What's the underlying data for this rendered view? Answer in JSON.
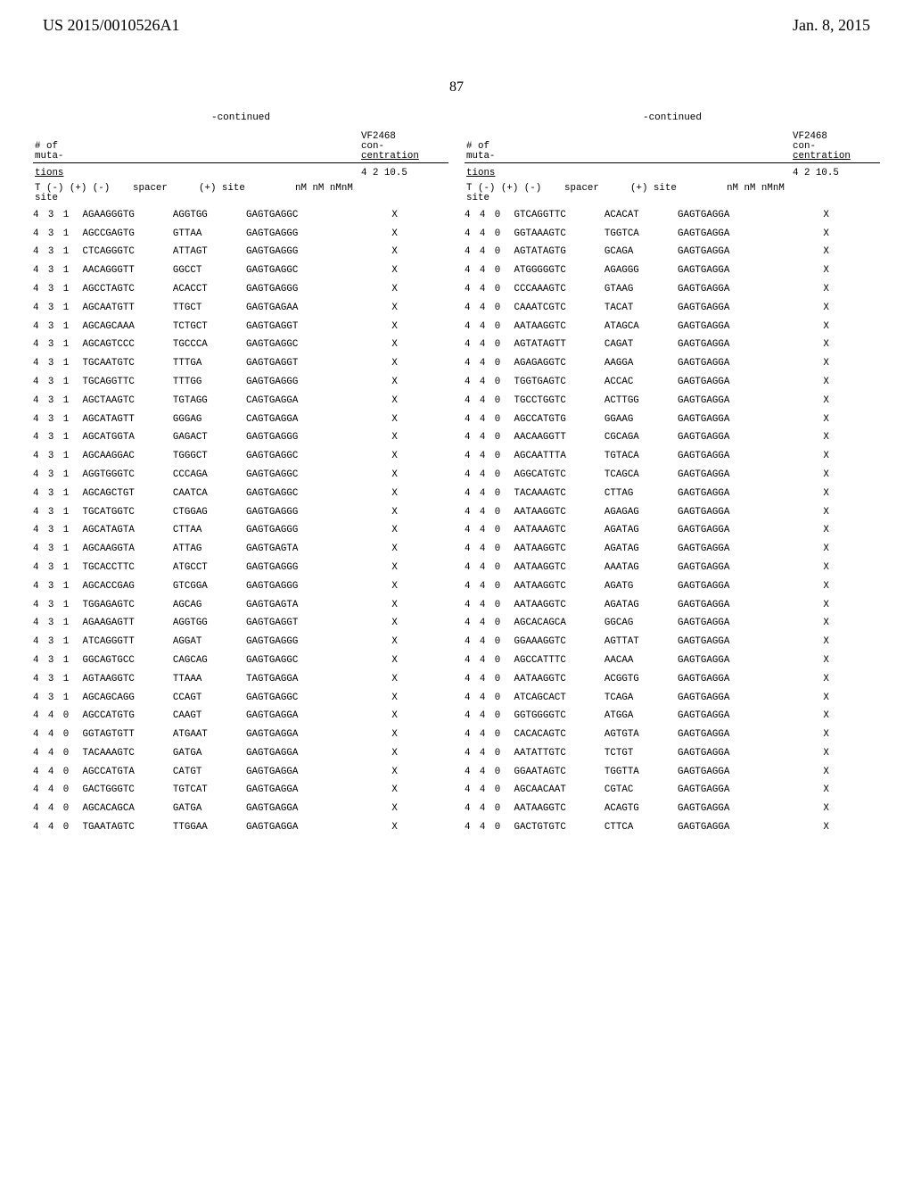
{
  "header": {
    "left": "US 2015/0010526A1",
    "right": "Jan. 8, 2015"
  },
  "page_number": "87",
  "continued_label": "-continued",
  "column_headers": {
    "muta_line1": "# of",
    "muta_line2": "muta-",
    "vf_line1": "VF2468",
    "vf_line2": "con-",
    "vf_line3": "centration",
    "tions": "tions",
    "nums": "4   2   10.5",
    "t_label": "T (-) (+) (-) site",
    "spacer": "spacer",
    "plus_site": "(+) site",
    "nm": "nM  nM  nMnM"
  },
  "left_rows": [
    {
      "a": "4",
      "b": "3",
      "c": "1",
      "site": "AGAAGGGTG",
      "spacer": "AGGTGG",
      "plus": "GAGTGAGGC",
      "m": [
        "",
        "X",
        ""
      ]
    },
    {
      "a": "4",
      "b": "3",
      "c": "1",
      "site": "AGCCGAGTG",
      "spacer": "GTTAA",
      "plus": "GAGTGAGGG",
      "m": [
        "",
        "X",
        ""
      ]
    },
    {
      "a": "4",
      "b": "3",
      "c": "1",
      "site": "CTCAGGGTC",
      "spacer": "ATTAGT",
      "plus": "GAGTGAGGG",
      "m": [
        "",
        "X",
        ""
      ]
    },
    {
      "a": "4",
      "b": "3",
      "c": "1",
      "site": "AACAGGGTT",
      "spacer": "GGCCT",
      "plus": "GAGTGAGGC",
      "m": [
        "",
        "X",
        ""
      ]
    },
    {
      "a": "4",
      "b": "3",
      "c": "1",
      "site": "AGCCTAGTC",
      "spacer": "ACACCT",
      "plus": "GAGTGAGGG",
      "m": [
        "",
        "X",
        ""
      ]
    },
    {
      "a": "4",
      "b": "3",
      "c": "1",
      "site": "AGCAATGTT",
      "spacer": "TTGCT",
      "plus": "GAGTGAGAA",
      "m": [
        "",
        "X",
        ""
      ]
    },
    {
      "a": "4",
      "b": "3",
      "c": "1",
      "site": "AGCAGCAAA",
      "spacer": "TCTGCT",
      "plus": "GAGTGAGGT",
      "m": [
        "",
        "X",
        ""
      ]
    },
    {
      "a": "4",
      "b": "3",
      "c": "1",
      "site": "AGCAGTCCC",
      "spacer": "TGCCCA",
      "plus": "GAGTGAGGC",
      "m": [
        "",
        "X",
        ""
      ]
    },
    {
      "a": "4",
      "b": "3",
      "c": "1",
      "site": "TGCAATGTC",
      "spacer": "TTTGA",
      "plus": "GAGTGAGGT",
      "m": [
        "",
        "X",
        ""
      ]
    },
    {
      "a": "4",
      "b": "3",
      "c": "1",
      "site": "TGCAGGTTC",
      "spacer": "TTTGG",
      "plus": "GAGTGAGGG",
      "m": [
        "",
        "X",
        ""
      ]
    },
    {
      "a": "4",
      "b": "3",
      "c": "1",
      "site": "AGCTAAGTC",
      "spacer": "TGTAGG",
      "plus": "CAGTGAGGA",
      "m": [
        "",
        "X",
        ""
      ]
    },
    {
      "a": "4",
      "b": "3",
      "c": "1",
      "site": "AGCATAGTT",
      "spacer": "GGGAG",
      "plus": "CAGTGAGGA",
      "m": [
        "",
        "X",
        ""
      ]
    },
    {
      "a": "4",
      "b": "3",
      "c": "1",
      "site": "AGCATGGTA",
      "spacer": "GAGACT",
      "plus": "GAGTGAGGG",
      "m": [
        "",
        "X",
        ""
      ]
    },
    {
      "a": "4",
      "b": "3",
      "c": "1",
      "site": "AGCAAGGAC",
      "spacer": "TGGGCT",
      "plus": "GAGTGAGGC",
      "m": [
        "",
        "X",
        ""
      ]
    },
    {
      "a": "4",
      "b": "3",
      "c": "1",
      "site": "AGGTGGGTC",
      "spacer": "CCCAGA",
      "plus": "GAGTGAGGC",
      "m": [
        "",
        "X",
        ""
      ]
    },
    {
      "a": "4",
      "b": "3",
      "c": "1",
      "site": "AGCAGCTGT",
      "spacer": "CAATCA",
      "plus": "GAGTGAGGC",
      "m": [
        "",
        "X",
        ""
      ]
    },
    {
      "a": "4",
      "b": "3",
      "c": "1",
      "site": "TGCATGGTC",
      "spacer": "CTGGAG",
      "plus": "GAGTGAGGG",
      "m": [
        "",
        "X",
        ""
      ]
    },
    {
      "a": "4",
      "b": "3",
      "c": "1",
      "site": "AGCATAGTA",
      "spacer": "CTTAA",
      "plus": "GAGTGAGGG",
      "m": [
        "",
        "X",
        ""
      ]
    },
    {
      "a": "4",
      "b": "3",
      "c": "1",
      "site": "AGCAAGGTA",
      "spacer": "ATTAG",
      "plus": "GAGTGAGTA",
      "m": [
        "",
        "X",
        ""
      ]
    },
    {
      "a": "4",
      "b": "3",
      "c": "1",
      "site": "TGCACCTTC",
      "spacer": "ATGCCT",
      "plus": "GAGTGAGGG",
      "m": [
        "",
        "X",
        ""
      ]
    },
    {
      "a": "4",
      "b": "3",
      "c": "1",
      "site": "AGCACCGAG",
      "spacer": "GTCGGA",
      "plus": "GAGTGAGGG",
      "m": [
        "",
        "X",
        ""
      ]
    },
    {
      "a": "4",
      "b": "3",
      "c": "1",
      "site": "TGGAGAGTC",
      "spacer": "AGCAG",
      "plus": "GAGTGAGTA",
      "m": [
        "",
        "X",
        ""
      ]
    },
    {
      "a": "4",
      "b": "3",
      "c": "1",
      "site": "AGAAGAGTT",
      "spacer": "AGGTGG",
      "plus": "GAGTGAGGT",
      "m": [
        "",
        "X",
        ""
      ]
    },
    {
      "a": "4",
      "b": "3",
      "c": "1",
      "site": "ATCAGGGTT",
      "spacer": "AGGAT",
      "plus": "GAGTGAGGG",
      "m": [
        "",
        "X",
        ""
      ]
    },
    {
      "a": "4",
      "b": "3",
      "c": "1",
      "site": "GGCAGTGCC",
      "spacer": "CAGCAG",
      "plus": "GAGTGAGGC",
      "m": [
        "",
        "X",
        ""
      ]
    },
    {
      "a": "4",
      "b": "3",
      "c": "1",
      "site": "AGTAAGGTC",
      "spacer": "TTAAA",
      "plus": "TAGTGAGGA",
      "m": [
        "",
        "X",
        ""
      ]
    },
    {
      "a": "4",
      "b": "3",
      "c": "1",
      "site": "AGCAGCAGG",
      "spacer": "CCAGT",
      "plus": "GAGTGAGGC",
      "m": [
        "",
        "X",
        ""
      ]
    },
    {
      "a": "4",
      "b": "4",
      "c": "0",
      "site": "AGCCATGTG",
      "spacer": "CAAGT",
      "plus": "GAGTGAGGA",
      "m": [
        "",
        "X",
        ""
      ]
    },
    {
      "a": "4",
      "b": "4",
      "c": "0",
      "site": "GGTAGTGTT",
      "spacer": "ATGAAT",
      "plus": "GAGTGAGGA",
      "m": [
        "",
        "X",
        ""
      ]
    },
    {
      "a": "4",
      "b": "4",
      "c": "0",
      "site": "TACAAAGTC",
      "spacer": "GATGA",
      "plus": "GAGTGAGGA",
      "m": [
        "",
        "X",
        ""
      ]
    },
    {
      "a": "4",
      "b": "4",
      "c": "0",
      "site": "AGCCATGTA",
      "spacer": "CATGT",
      "plus": "GAGTGAGGA",
      "m": [
        "",
        "X",
        ""
      ]
    },
    {
      "a": "4",
      "b": "4",
      "c": "0",
      "site": "GACTGGGTC",
      "spacer": "TGTCAT",
      "plus": "GAGTGAGGA",
      "m": [
        "",
        "X",
        ""
      ]
    },
    {
      "a": "4",
      "b": "4",
      "c": "0",
      "site": "AGCACAGCA",
      "spacer": "GATGA",
      "plus": "GAGTGAGGA",
      "m": [
        "",
        "X",
        ""
      ]
    },
    {
      "a": "4",
      "b": "4",
      "c": "0",
      "site": "TGAATAGTC",
      "spacer": "TTGGAA",
      "plus": "GAGTGAGGA",
      "m": [
        "",
        "X",
        ""
      ]
    }
  ],
  "right_rows": [
    {
      "a": "4",
      "b": "4",
      "c": "0",
      "site": "GTCAGGTTC",
      "spacer": "ACACAT",
      "plus": "GAGTGAGGA",
      "m": [
        "",
        "X",
        ""
      ]
    },
    {
      "a": "4",
      "b": "4",
      "c": "0",
      "site": "GGTAAAGTC",
      "spacer": "TGGTCA",
      "plus": "GAGTGAGGA",
      "m": [
        "",
        "X",
        ""
      ]
    },
    {
      "a": "4",
      "b": "4",
      "c": "0",
      "site": "AGTATAGTG",
      "spacer": "GCAGA",
      "plus": "GAGTGAGGA",
      "m": [
        "",
        "X",
        ""
      ]
    },
    {
      "a": "4",
      "b": "4",
      "c": "0",
      "site": "ATGGGGGTC",
      "spacer": "AGAGGG",
      "plus": "GAGTGAGGA",
      "m": [
        "",
        "X",
        ""
      ]
    },
    {
      "a": "4",
      "b": "4",
      "c": "0",
      "site": "CCCAAAGTC",
      "spacer": "GTAAG",
      "plus": "GAGTGAGGA",
      "m": [
        "",
        "X",
        ""
      ]
    },
    {
      "a": "4",
      "b": "4",
      "c": "0",
      "site": "CAAATCGTC",
      "spacer": "TACAT",
      "plus": "GAGTGAGGA",
      "m": [
        "",
        "X",
        ""
      ]
    },
    {
      "a": "4",
      "b": "4",
      "c": "0",
      "site": "AATAAGGTC",
      "spacer": "ATAGCA",
      "plus": "GAGTGAGGA",
      "m": [
        "",
        "X",
        ""
      ]
    },
    {
      "a": "4",
      "b": "4",
      "c": "0",
      "site": "AGTATAGTT",
      "spacer": "CAGAT",
      "plus": "GAGTGAGGA",
      "m": [
        "",
        "X",
        ""
      ]
    },
    {
      "a": "4",
      "b": "4",
      "c": "0",
      "site": "AGAGAGGTC",
      "spacer": "AAGGA",
      "plus": "GAGTGAGGA",
      "m": [
        "",
        "X",
        ""
      ]
    },
    {
      "a": "4",
      "b": "4",
      "c": "0",
      "site": "TGGTGAGTC",
      "spacer": "ACCAC",
      "plus": "GAGTGAGGA",
      "m": [
        "",
        "X",
        ""
      ]
    },
    {
      "a": "4",
      "b": "4",
      "c": "0",
      "site": "TGCCTGGTC",
      "spacer": "ACTTGG",
      "plus": "GAGTGAGGA",
      "m": [
        "",
        "X",
        ""
      ]
    },
    {
      "a": "4",
      "b": "4",
      "c": "0",
      "site": "AGCCATGTG",
      "spacer": "GGAAG",
      "plus": "GAGTGAGGA",
      "m": [
        "",
        "X",
        ""
      ]
    },
    {
      "a": "4",
      "b": "4",
      "c": "0",
      "site": "AACAAGGTT",
      "spacer": "CGCAGA",
      "plus": "GAGTGAGGA",
      "m": [
        "",
        "X",
        ""
      ]
    },
    {
      "a": "4",
      "b": "4",
      "c": "0",
      "site": "AGCAATTTA",
      "spacer": "TGTACA",
      "plus": "GAGTGAGGA",
      "m": [
        "",
        "X",
        ""
      ]
    },
    {
      "a": "4",
      "b": "4",
      "c": "0",
      "site": "AGGCATGTC",
      "spacer": "TCAGCA",
      "plus": "GAGTGAGGA",
      "m": [
        "",
        "X",
        ""
      ]
    },
    {
      "a": "4",
      "b": "4",
      "c": "0",
      "site": "TACAAAGTC",
      "spacer": "CTTAG",
      "plus": "GAGTGAGGA",
      "m": [
        "",
        "X",
        ""
      ]
    },
    {
      "a": "4",
      "b": "4",
      "c": "0",
      "site": "AATAAGGTC",
      "spacer": "AGAGAG",
      "plus": "GAGTGAGGA",
      "m": [
        "",
        "X",
        ""
      ]
    },
    {
      "a": "4",
      "b": "4",
      "c": "0",
      "site": "AATAAAGTC",
      "spacer": "AGATAG",
      "plus": "GAGTGAGGA",
      "m": [
        "",
        "X",
        ""
      ]
    },
    {
      "a": "4",
      "b": "4",
      "c": "0",
      "site": "AATAAGGTC",
      "spacer": "AGATAG",
      "plus": "GAGTGAGGA",
      "m": [
        "",
        "X",
        ""
      ]
    },
    {
      "a": "4",
      "b": "4",
      "c": "0",
      "site": "AATAAGGTC",
      "spacer": "AAATAG",
      "plus": "GAGTGAGGA",
      "m": [
        "",
        "X",
        ""
      ]
    },
    {
      "a": "4",
      "b": "4",
      "c": "0",
      "site": "AATAAGGTC",
      "spacer": "AGATG",
      "plus": "GAGTGAGGA",
      "m": [
        "",
        "X",
        ""
      ]
    },
    {
      "a": "4",
      "b": "4",
      "c": "0",
      "site": "AATAAGGTC",
      "spacer": "AGATAG",
      "plus": "GAGTGAGGA",
      "m": [
        "",
        "X",
        ""
      ]
    },
    {
      "a": "4",
      "b": "4",
      "c": "0",
      "site": "AGCACAGCA",
      "spacer": "GGCAG",
      "plus": "GAGTGAGGA",
      "m": [
        "",
        "X",
        ""
      ]
    },
    {
      "a": "4",
      "b": "4",
      "c": "0",
      "site": "GGAAAGGTC",
      "spacer": "AGTTAT",
      "plus": "GAGTGAGGA",
      "m": [
        "",
        "X",
        ""
      ]
    },
    {
      "a": "4",
      "b": "4",
      "c": "0",
      "site": "AGCCATTTC",
      "spacer": "AACAA",
      "plus": "GAGTGAGGA",
      "m": [
        "",
        "X",
        ""
      ]
    },
    {
      "a": "4",
      "b": "4",
      "c": "0",
      "site": "AATAAGGTC",
      "spacer": "ACGGTG",
      "plus": "GAGTGAGGA",
      "m": [
        "",
        "X",
        ""
      ]
    },
    {
      "a": "4",
      "b": "4",
      "c": "0",
      "site": "ATCAGCACT",
      "spacer": "TCAGA",
      "plus": "GAGTGAGGA",
      "m": [
        "",
        "X",
        ""
      ]
    },
    {
      "a": "4",
      "b": "4",
      "c": "0",
      "site": "GGTGGGGTC",
      "spacer": "ATGGA",
      "plus": "GAGTGAGGA",
      "m": [
        "",
        "X",
        ""
      ]
    },
    {
      "a": "4",
      "b": "4",
      "c": "0",
      "site": "CACACAGTC",
      "spacer": "AGTGTA",
      "plus": "GAGTGAGGA",
      "m": [
        "",
        "X",
        ""
      ]
    },
    {
      "a": "4",
      "b": "4",
      "c": "0",
      "site": "AATATTGTC",
      "spacer": "TCTGT",
      "plus": "GAGTGAGGA",
      "m": [
        "",
        "X",
        ""
      ]
    },
    {
      "a": "4",
      "b": "4",
      "c": "0",
      "site": "GGAATAGTC",
      "spacer": "TGGTTA",
      "plus": "GAGTGAGGA",
      "m": [
        "",
        "X",
        ""
      ]
    },
    {
      "a": "4",
      "b": "4",
      "c": "0",
      "site": "AGCAACAAT",
      "spacer": "CGTAC",
      "plus": "GAGTGAGGA",
      "m": [
        "",
        "X",
        ""
      ]
    },
    {
      "a": "4",
      "b": "4",
      "c": "0",
      "site": "AATAAGGTC",
      "spacer": "ACAGTG",
      "plus": "GAGTGAGGA",
      "m": [
        "",
        "X",
        ""
      ]
    },
    {
      "a": "4",
      "b": "4",
      "c": "0",
      "site": "GACTGTGTC",
      "spacer": "CTTCA",
      "plus": "GAGTGAGGA",
      "m": [
        "",
        "X",
        ""
      ]
    }
  ]
}
